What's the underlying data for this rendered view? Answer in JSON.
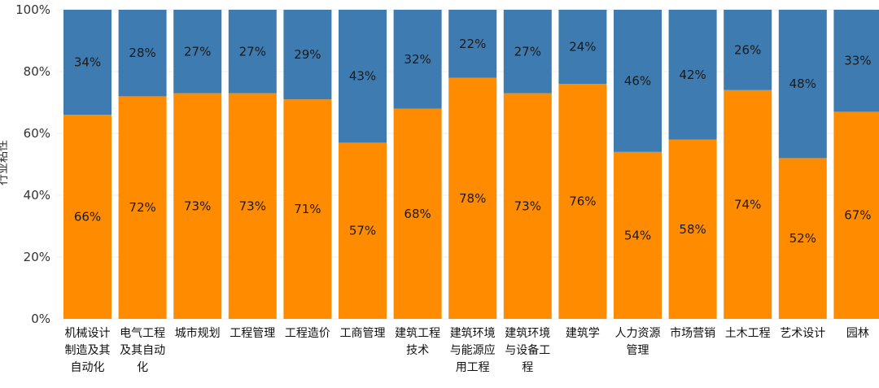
{
  "chart_data": {
    "type": "bar",
    "stacked": true,
    "normalized": true,
    "title": "",
    "xlabel": "",
    "ylabel": "行业粘性",
    "ylim": [
      0,
      100
    ],
    "yticks": [
      "0%",
      "20%",
      "40%",
      "60%",
      "80%",
      "100%"
    ],
    "categories": [
      [
        "机械设计",
        "制造及其",
        "自动化"
      ],
      [
        "电气工程",
        "及其自动",
        "化"
      ],
      [
        "城市规划"
      ],
      [
        "工程管理"
      ],
      [
        "工程造价"
      ],
      [
        "工商管理"
      ],
      [
        "建筑工程",
        "技术"
      ],
      [
        "建筑环境",
        "与能源应",
        "用工程"
      ],
      [
        "建筑环境",
        "与设备工",
        "程"
      ],
      [
        "建筑学"
      ],
      [
        "人力资源",
        "管理"
      ],
      [
        "市场营销"
      ],
      [
        "土木工程"
      ],
      [
        "艺术设计"
      ],
      [
        "园林"
      ]
    ],
    "series": [
      {
        "name": "orange",
        "color": "#ff8c00",
        "values": [
          66,
          72,
          73,
          73,
          71,
          57,
          68,
          78,
          73,
          76,
          54,
          58,
          74,
          52,
          67
        ],
        "labels": [
          "66%",
          "72%",
          "73%",
          "73%",
          "71%",
          "57%",
          "68%",
          "78%",
          "73%",
          "76%",
          "54%",
          "58%",
          "74%",
          "52%",
          "67%"
        ]
      },
      {
        "name": "blue",
        "color": "#3e7bb0",
        "values": [
          34,
          28,
          27,
          27,
          29,
          43,
          32,
          22,
          27,
          24,
          46,
          42,
          26,
          48,
          33
        ],
        "labels": [
          "34%",
          "28%",
          "27%",
          "27%",
          "29%",
          "43%",
          "32%",
          "22%",
          "27%",
          "24%",
          "46%",
          "42%",
          "26%",
          "48%",
          "33%"
        ]
      }
    ]
  }
}
